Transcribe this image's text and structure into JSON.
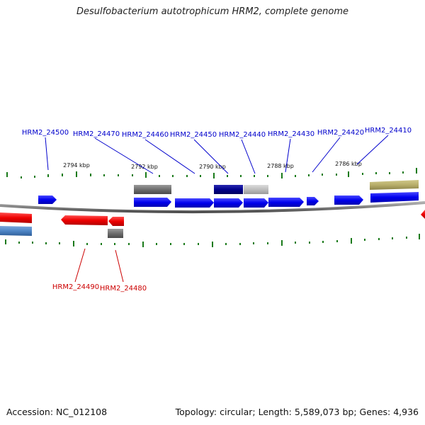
{
  "title": "Desulfobacterium autotrophicum HRM2, complete genome",
  "footer": {
    "accession": "Accession: NC_012108",
    "summary": "Topology: circular; Length: 5,589,073 bp; Genes: 4,936"
  },
  "scale_labels": [
    "2794 kbp",
    "2792 kbp",
    "2790 kbp",
    "2788 kbp",
    "2786 kbp"
  ],
  "genes_forward": [
    "HRM2_24500",
    "HRM2_24470",
    "HRM2_24460",
    "HRM2_24450",
    "HRM2_24440",
    "HRM2_24430",
    "HRM2_24420",
    "HRM2_24410"
  ],
  "genes_reverse": [
    "HRM2_24490",
    "HRM2_24480"
  ],
  "colors": {
    "forward": "#0000ee",
    "reverse": "#ee0000",
    "gray": "#6e6e6e",
    "navy": "#00008b",
    "light_gray": "#bdbdbd",
    "olive": "#b8ae6a",
    "steel_blue": "#4f86c6",
    "tick": "#1a7a1a",
    "backbone": "#808080"
  }
}
